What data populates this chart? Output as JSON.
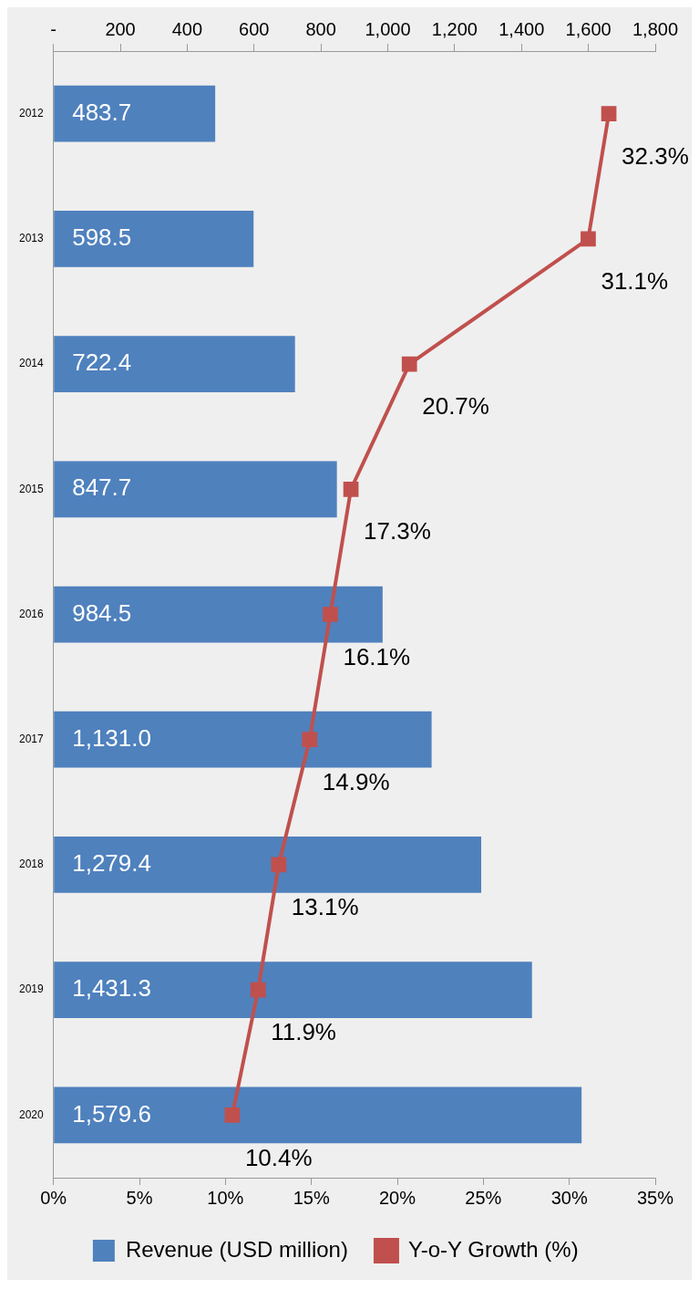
{
  "chart_data": {
    "type": "bar",
    "orientation": "horizontal",
    "categories": [
      "2012",
      "2013",
      "2014",
      "2015",
      "2016",
      "2017",
      "2018",
      "2019",
      "2020"
    ],
    "series": [
      {
        "name": "Revenue (USD million)",
        "axis": "x2",
        "color": "#4f81bd",
        "values": [
          483.7,
          598.5,
          722.4,
          847.7,
          984.5,
          1131.0,
          1279.4,
          1431.3,
          1579.6
        ],
        "value_labels": [
          "483.7",
          "598.5",
          "722.4",
          "847.7",
          "984.5",
          "1,131.0",
          "1,279.4",
          "1,431.3",
          "1,579.6"
        ]
      },
      {
        "name": "Y-o-Y Growth (%)",
        "type": "line",
        "color": "#c0504d",
        "values": [
          32.3,
          31.1,
          20.7,
          17.3,
          16.1,
          14.9,
          13.1,
          11.9,
          10.4
        ],
        "value_labels": [
          "32.3%",
          "31.1%",
          "20.7%",
          "17.3%",
          "16.1%",
          "14.9%",
          "13.1%",
          "11.9%",
          "10.4%"
        ]
      }
    ],
    "xlim": [
      0,
      35
    ],
    "xticks": [
      {
        "value": 0,
        "label": "0%"
      },
      {
        "value": 5,
        "label": "5%"
      },
      {
        "value": 10,
        "label": "10%"
      },
      {
        "value": 15,
        "label": "15%"
      },
      {
        "value": 20,
        "label": "20%"
      },
      {
        "value": 25,
        "label": "25%"
      },
      {
        "value": 30,
        "label": "30%"
      },
      {
        "value": 35,
        "label": "35%"
      }
    ],
    "x2lim": [
      0,
      1800
    ],
    "x2ticks": [
      {
        "value": 0,
        "label": "-"
      },
      200,
      400,
      600,
      800,
      {
        "value": 1000,
        "label": "1,000"
      },
      {
        "value": 1200,
        "label": "1,200"
      },
      {
        "value": 1400,
        "label": "1,400"
      },
      {
        "value": 1600,
        "label": "1,600"
      },
      {
        "value": 1800,
        "label": "1,800"
      }
    ],
    "marker": "square",
    "legend": "bottom"
  }
}
